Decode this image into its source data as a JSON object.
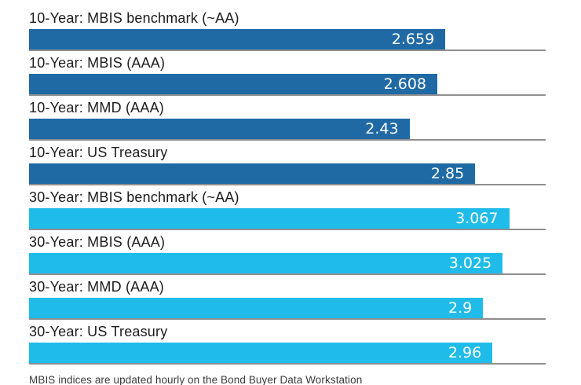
{
  "chart_data": {
    "type": "bar",
    "orientation": "horizontal",
    "title": "",
    "xlabel": "",
    "ylabel": "",
    "xlim": [
      0,
      3.3
    ],
    "grid": "baseline-per-row",
    "legend_position": "none",
    "categories": [
      "10-Year: MBIS benchmark (~AA)",
      "10-Year: MBIS (AAA)",
      "10-Year: MMD (AAA)",
      "10-Year: US Treasury",
      "30-Year: MBIS benchmark (~AA)",
      "30-Year: MBIS (AAA)",
      "30-Year: MMD (AAA)",
      "30-Year: US Treasury"
    ],
    "values": [
      2.659,
      2.608,
      2.43,
      2.85,
      3.067,
      3.025,
      2.9,
      2.96
    ],
    "value_labels": [
      "2.659",
      "2.608",
      "2.43",
      "2.85",
      "3.067",
      "3.025",
      "2.9",
      "2.96"
    ],
    "bar_colors": [
      "#1F6AA5",
      "#1F6AA5",
      "#1F6AA5",
      "#1F6AA5",
      "#1FBCE9",
      "#1FBCE9",
      "#1FBCE9",
      "#1FBCE9"
    ],
    "series_color_meaning": {
      "10-Year": "#1F6AA5",
      "30-Year": "#1FBCE9"
    }
  },
  "colors": {
    "background": "#ffffff",
    "baseline_gray": "#8f8f8f",
    "label_text": "#1c1c1c",
    "value_text": "#ffffff",
    "footnote_text": "#3a3a3a"
  },
  "footer": {
    "note": "MBIS indices are updated hourly on the Bond Buyer Data Workstation"
  }
}
